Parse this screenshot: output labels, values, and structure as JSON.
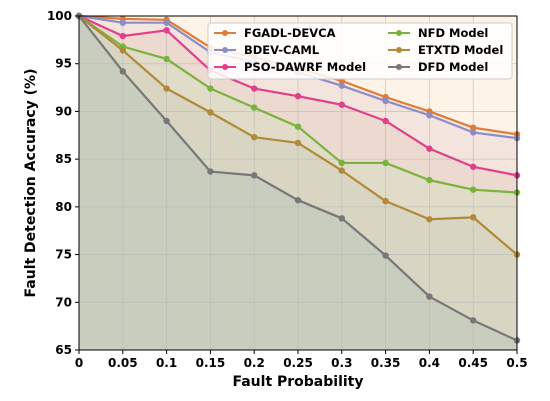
{
  "chart_data": {
    "type": "area",
    "xlabel": "Fault Probability",
    "ylabel": "Fault Detection Accuracy (%)",
    "x": [
      0,
      0.05,
      0.1,
      0.15,
      0.2,
      0.25,
      0.3,
      0.35,
      0.4,
      0.45,
      0.5
    ],
    "x_tick_labels": [
      "0",
      "0.05",
      "0.1",
      "0.15",
      "0.2",
      "0.25",
      "0.3",
      "0.35",
      "0.4",
      "0.45",
      "0.5"
    ],
    "ylim": [
      65,
      100
    ],
    "y_ticks": [
      65,
      70,
      75,
      80,
      85,
      90,
      95,
      100
    ],
    "y_tick_labels": [
      "65",
      "70",
      "75",
      "80",
      "85",
      "90",
      "95",
      "100"
    ],
    "grid": true,
    "legend_position": "top-right",
    "series": [
      {
        "name": "FGADL-DEVCA",
        "color": "#e07b39",
        "fill": "#fbeee0",
        "values": [
          100,
          99.7,
          99.6,
          96.7,
          95.7,
          94.5,
          93.2,
          91.5,
          90.0,
          88.3,
          87.6
        ]
      },
      {
        "name": "BDEV-CAML",
        "color": "#8c8cc8",
        "fill": "#f3e4dd",
        "values": [
          100,
          99.3,
          99.3,
          96.2,
          95.2,
          94.1,
          92.7,
          91.1,
          89.6,
          87.8,
          87.2
        ]
      },
      {
        "name": "PSO-DAWRF Model",
        "color": "#e0408a",
        "fill": "#ecd9d0",
        "values": [
          100,
          97.9,
          98.5,
          94.3,
          92.4,
          91.6,
          90.7,
          89.0,
          86.1,
          84.2,
          83.3
        ]
      },
      {
        "name": "NFD Model",
        "color": "#7ab33c",
        "fill": "#e1dcc8",
        "values": [
          100,
          96.8,
          95.5,
          92.4,
          90.4,
          88.4,
          84.6,
          84.6,
          82.8,
          81.8,
          81.5
        ]
      },
      {
        "name": "ETXTD Model",
        "color": "#b08a3a",
        "fill": "#d8d6c2",
        "values": [
          100,
          96.4,
          92.4,
          89.9,
          87.3,
          86.7,
          83.8,
          80.6,
          78.7,
          78.9,
          75.0
        ]
      },
      {
        "name": "DFD Model",
        "color": "#777777",
        "fill": "#c9cdbd",
        "values": [
          100,
          94.2,
          89.0,
          83.7,
          83.3,
          80.7,
          78.8,
          74.9,
          70.6,
          68.1,
          66.0
        ]
      }
    ]
  }
}
